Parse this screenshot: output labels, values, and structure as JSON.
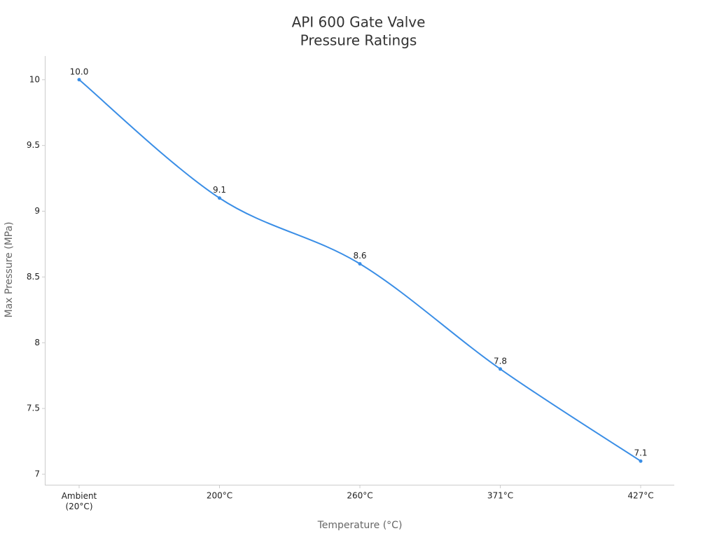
{
  "chart_data": {
    "type": "line",
    "title": [
      "API 600 Gate Valve",
      "Pressure Ratings"
    ],
    "x_label": "Temperature (°C)",
    "y_label": "Max Pressure (MPa)",
    "categories": [
      "Ambient\n(20°C)",
      "200°C",
      "260°C",
      "371°C",
      "427°C"
    ],
    "series": [
      {
        "name": "Max Pressure",
        "color": "#3a8ee6",
        "values": [
          10,
          9.1,
          8.6,
          7.8,
          7.1
        ],
        "value_labels": [
          "10.0",
          "9.1",
          "8.6",
          "7.8",
          "7.1"
        ]
      }
    ],
    "ylim": [
      6.92,
      10.18
    ],
    "yticks": [
      7,
      7.5,
      8,
      8.5,
      9,
      9.5,
      10
    ]
  }
}
